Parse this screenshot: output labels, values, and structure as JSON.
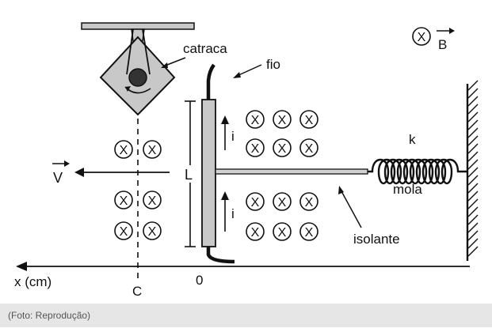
{
  "labels": {
    "catraca": "catraca",
    "fio": "fio",
    "field_symbol": "X",
    "field_vector": "B",
    "velocity_vector": "V",
    "length": "L",
    "current_upper": "i",
    "current_lower": "i",
    "spring_constant": "k",
    "spring": "mola",
    "insulator": "isolante",
    "axis": "x (cm)",
    "point_c": "C",
    "origin": "0"
  },
  "caption": "(Foto: Reprodução)",
  "colors": {
    "line": "#111111",
    "ratchet_fill": "#c8c8c8",
    "rod_fill": "#c9c9c9",
    "caption_bg": "#e6e6e6",
    "caption_text": "#555555"
  }
}
